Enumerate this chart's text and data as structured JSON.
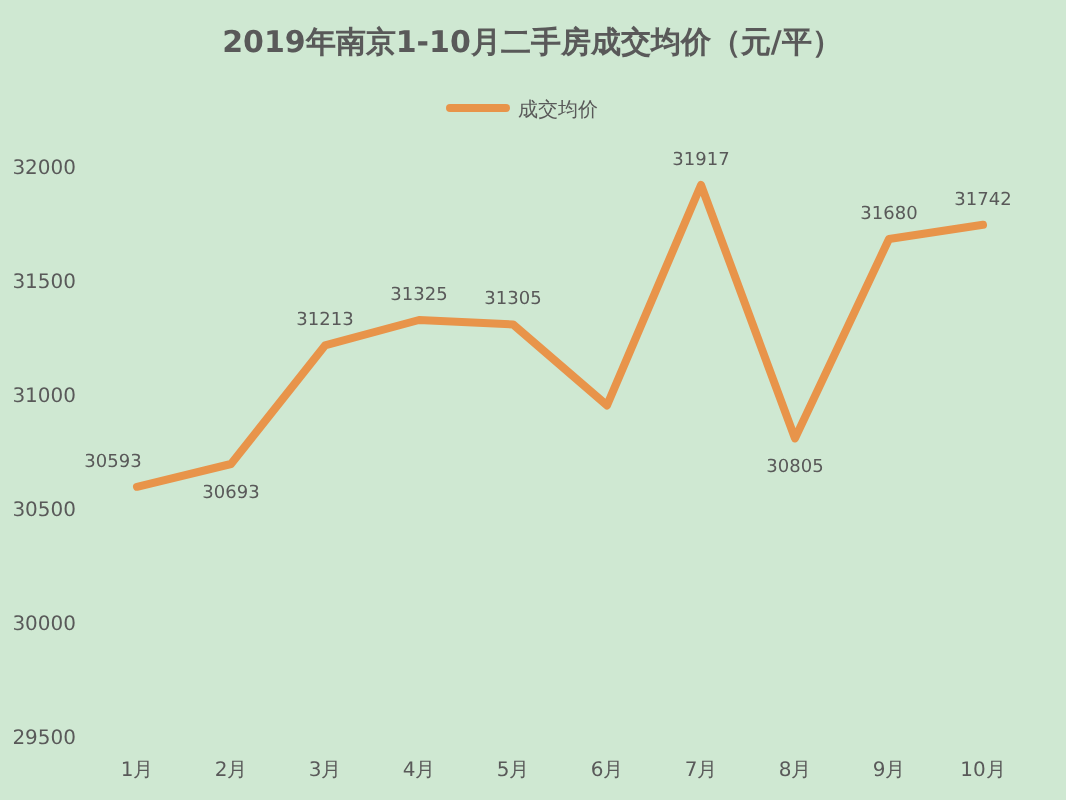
{
  "chart_data": {
    "type": "line",
    "title": "2019年南京1-10月二手房成交均价（元/平）",
    "categories": [
      "1月",
      "2月",
      "3月",
      "4月",
      "5月",
      "6月",
      "7月",
      "8月",
      "9月",
      "10月"
    ],
    "series": [
      {
        "name": "成交均价",
        "color": "#e8944a",
        "values": [
          30593,
          30693,
          31213,
          31325,
          31305,
          30950,
          31917,
          30805,
          31680,
          31742
        ],
        "value_labels": [
          "30593",
          "30693",
          "31213",
          "31325",
          "31305",
          null,
          "31917",
          "30805",
          "31680",
          "31742"
        ]
      }
    ],
    "ylim": [
      29500,
      32000
    ],
    "yticks": [
      29500,
      30000,
      30500,
      31000,
      31500,
      32000
    ],
    "legend": "top",
    "grid": false
  }
}
